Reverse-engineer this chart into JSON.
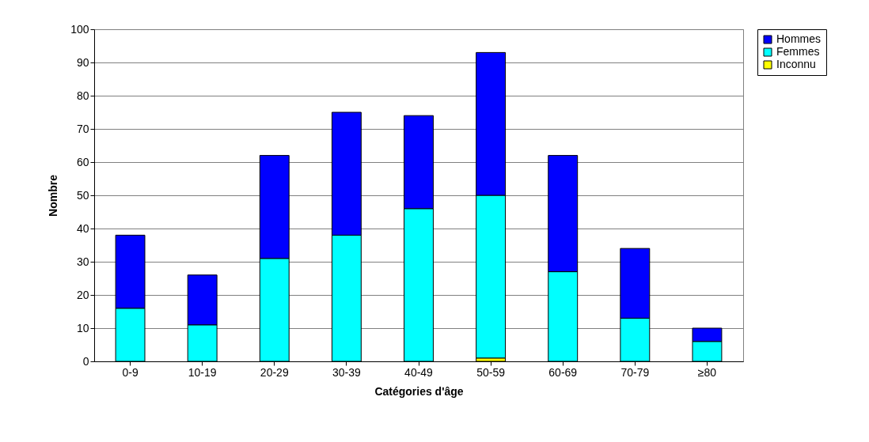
{
  "chart_data": {
    "type": "bar",
    "stacked": true,
    "xlabel": "Catégories d'âge",
    "ylabel": "Nombre",
    "categories": [
      "0-9",
      "10-19",
      "20-29",
      "30-39",
      "40-49",
      "50-59",
      "60-69",
      "70-79",
      "≥80"
    ],
    "series": [
      {
        "name": "Inconnu",
        "color": "#ffff00",
        "values": [
          0,
          0,
          0,
          0,
          0,
          1,
          0,
          0,
          0
        ]
      },
      {
        "name": "Femmes",
        "color": "#00ffff",
        "values": [
          16,
          11,
          31,
          38,
          46,
          49,
          27,
          13,
          6
        ]
      },
      {
        "name": "Hommes",
        "color": "#0000ff",
        "values": [
          22,
          15,
          31,
          37,
          28,
          43,
          35,
          21,
          4
        ]
      }
    ],
    "ylim": [
      0,
      100
    ],
    "yticks": [
      0,
      10,
      20,
      30,
      40,
      50,
      60,
      70,
      80,
      90,
      100
    ],
    "grid": "y",
    "legend": "right"
  }
}
